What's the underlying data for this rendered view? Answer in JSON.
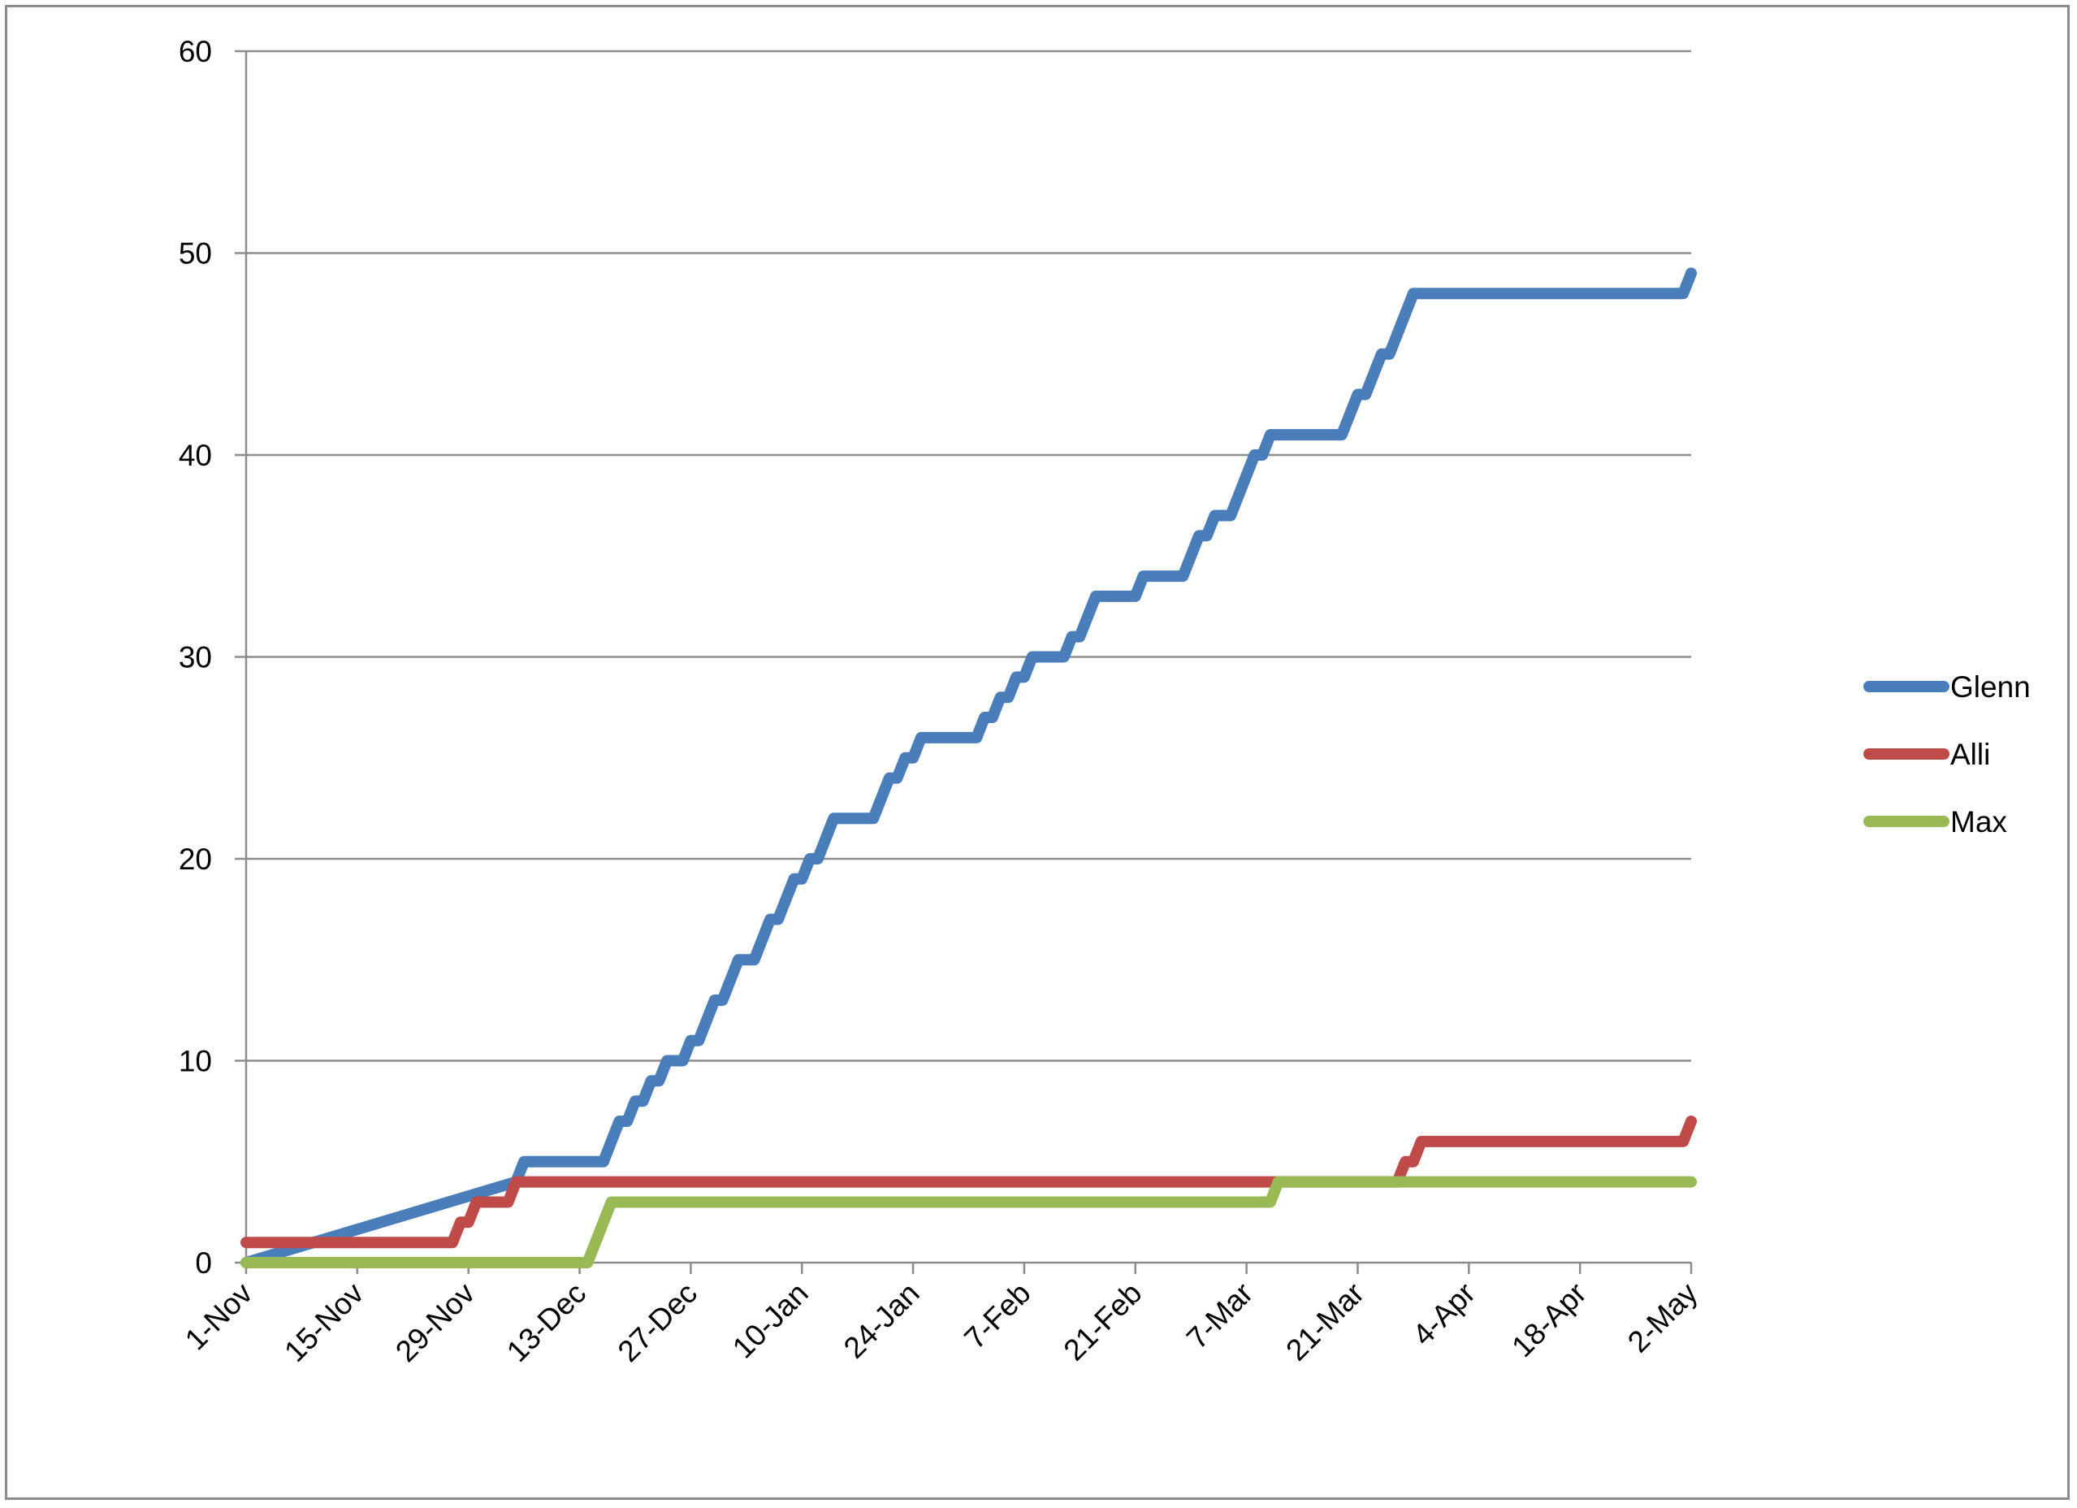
{
  "chart_data": {
    "type": "line",
    "title": "",
    "xlabel": "",
    "ylabel": "",
    "ylim": [
      0,
      60
    ],
    "yticks": [
      0,
      10,
      20,
      30,
      40,
      50,
      60
    ],
    "xlim": [
      "2012-11-01",
      "2013-05-02"
    ],
    "xticks": [
      "1-Nov",
      "15-Nov",
      "29-Nov",
      "13-Dec",
      "27-Dec",
      "10-Jan",
      "24-Jan",
      "7-Feb",
      "21-Feb",
      "7-Mar",
      "21-Mar",
      "4-Apr",
      "18-Apr",
      "2-May"
    ],
    "xtick_dates": [
      "2012-11-01",
      "2012-11-15",
      "2012-11-29",
      "2012-12-13",
      "2012-12-27",
      "2013-01-10",
      "2013-01-24",
      "2013-02-07",
      "2013-02-21",
      "2013-03-07",
      "2013-03-21",
      "2013-04-04",
      "2013-04-18",
      "2013-05-02"
    ],
    "grid": true,
    "legend_position": "right",
    "series": [
      {
        "name": "Glenn",
        "color": "#4a7ebb",
        "points": [
          [
            "2012-11-01",
            0
          ],
          [
            "2012-12-05",
            4
          ],
          [
            "2012-12-06",
            5
          ],
          [
            "2012-12-16",
            5
          ],
          [
            "2012-12-17",
            6
          ],
          [
            "2012-12-18",
            7
          ],
          [
            "2012-12-19",
            7
          ],
          [
            "2012-12-20",
            8
          ],
          [
            "2012-12-21",
            8
          ],
          [
            "2012-12-22",
            9
          ],
          [
            "2012-12-23",
            9
          ],
          [
            "2012-12-24",
            10
          ],
          [
            "2012-12-26",
            10
          ],
          [
            "2012-12-27",
            11
          ],
          [
            "2012-12-28",
            11
          ],
          [
            "2012-12-30",
            13
          ],
          [
            "2012-12-31",
            13
          ],
          [
            "2013-01-02",
            15
          ],
          [
            "2013-01-04",
            15
          ],
          [
            "2013-01-06",
            17
          ],
          [
            "2013-01-07",
            17
          ],
          [
            "2013-01-09",
            19
          ],
          [
            "2013-01-10",
            19
          ],
          [
            "2013-01-11",
            20
          ],
          [
            "2013-01-12",
            20
          ],
          [
            "2013-01-14",
            22
          ],
          [
            "2013-01-19",
            22
          ],
          [
            "2013-01-21",
            24
          ],
          [
            "2013-01-22",
            24
          ],
          [
            "2013-01-23",
            25
          ],
          [
            "2013-01-24",
            25
          ],
          [
            "2013-01-25",
            26
          ],
          [
            "2013-02-01",
            26
          ],
          [
            "2013-02-02",
            27
          ],
          [
            "2013-02-03",
            27
          ],
          [
            "2013-02-04",
            28
          ],
          [
            "2013-02-05",
            28
          ],
          [
            "2013-02-06",
            29
          ],
          [
            "2013-02-07",
            29
          ],
          [
            "2013-02-08",
            30
          ],
          [
            "2013-02-12",
            30
          ],
          [
            "2013-02-13",
            31
          ],
          [
            "2013-02-14",
            31
          ],
          [
            "2013-02-16",
            33
          ],
          [
            "2013-02-21",
            33
          ],
          [
            "2013-02-22",
            34
          ],
          [
            "2013-02-27",
            34
          ],
          [
            "2013-03-01",
            36
          ],
          [
            "2013-03-02",
            36
          ],
          [
            "2013-03-03",
            37
          ],
          [
            "2013-03-05",
            37
          ],
          [
            "2013-03-08",
            40
          ],
          [
            "2013-03-09",
            40
          ],
          [
            "2013-03-10",
            41
          ],
          [
            "2013-03-19",
            41
          ],
          [
            "2013-03-21",
            43
          ],
          [
            "2013-03-22",
            43
          ],
          [
            "2013-03-24",
            45
          ],
          [
            "2013-03-25",
            45
          ],
          [
            "2013-03-28",
            48
          ],
          [
            "2013-05-01",
            48
          ],
          [
            "2013-05-02",
            49
          ]
        ]
      },
      {
        "name": "Alli",
        "color": "#be4b48",
        "points": [
          [
            "2012-11-01",
            1
          ],
          [
            "2012-11-27",
            1
          ],
          [
            "2012-11-28",
            2
          ],
          [
            "2012-11-29",
            2
          ],
          [
            "2012-11-30",
            3
          ],
          [
            "2012-12-04",
            3
          ],
          [
            "2012-12-05",
            4
          ],
          [
            "2013-03-15",
            4
          ],
          [
            "2013-03-26",
            4
          ],
          [
            "2013-03-27",
            5
          ],
          [
            "2013-03-28",
            5
          ],
          [
            "2013-03-29",
            6
          ],
          [
            "2013-05-01",
            6
          ],
          [
            "2013-05-02",
            7
          ]
        ]
      },
      {
        "name": "Max",
        "color": "#98b954",
        "points": [
          [
            "2012-11-01",
            0
          ],
          [
            "2012-12-14",
            0
          ],
          [
            "2012-12-17",
            3
          ],
          [
            "2013-03-10",
            3
          ],
          [
            "2013-03-11",
            4
          ],
          [
            "2013-05-02",
            4
          ]
        ]
      }
    ]
  }
}
